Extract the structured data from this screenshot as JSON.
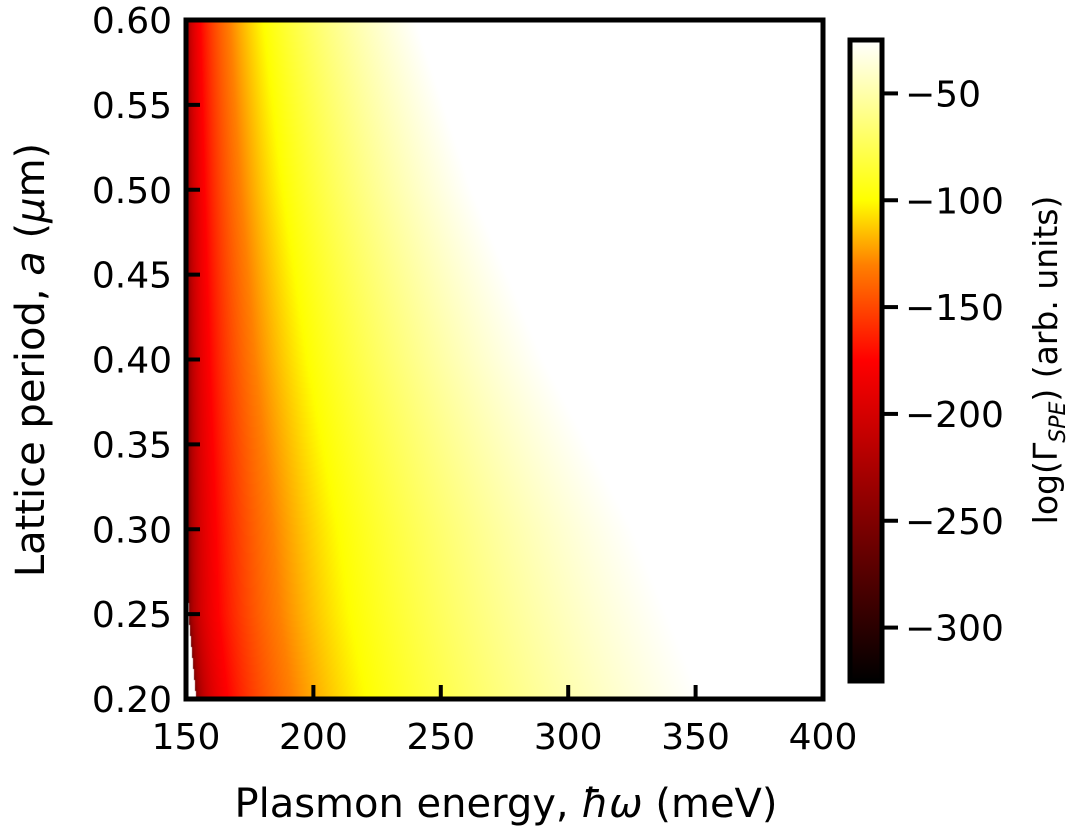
{
  "chart_data": {
    "type": "heatmap",
    "title": "",
    "xlabel": {
      "pre": "Plasmon energy, ",
      "sym": "ħω",
      "post": " (meV)"
    },
    "ylabel": {
      "pre": "Lattice period, ",
      "sym": "a",
      "post": " (",
      "mu": "μ",
      "unit": "m)"
    },
    "xlim": [
      150,
      400
    ],
    "ylim": [
      0.2,
      0.6
    ],
    "xticks": [
      150,
      200,
      250,
      300,
      350,
      400
    ],
    "xtick_labels": [
      "150",
      "200",
      "250",
      "300",
      "350",
      "400"
    ],
    "yticks": [
      0.2,
      0.25,
      0.3,
      0.35,
      0.4,
      0.45,
      0.5,
      0.55,
      0.6
    ],
    "ytick_labels": [
      "0.20",
      "0.25",
      "0.30",
      "0.35",
      "0.40",
      "0.45",
      "0.50",
      "0.55",
      "0.60"
    ],
    "colormap": "afmhot",
    "colorbar": {
      "label": {
        "pre": "log(Γ",
        "sub": "SPE",
        "post": ")  (arb. units)"
      },
      "vmin": -325,
      "vmax": -25,
      "ticks": [
        -50,
        -100,
        -150,
        -200,
        -250,
        -300
      ],
      "tick_labels": [
        "−50",
        "−100",
        "−150",
        "−200",
        "−250",
        "−300"
      ]
    },
    "field": {
      "description_keys": [
        "cutoff_energy_meV_at_a",
        "white_boundary_meV_at_a"
      ],
      "min_energy_edge": [
        {
          "a": 0.2,
          "e": 154
        },
        {
          "a": 0.25,
          "e": 151
        },
        {
          "a": 0.6,
          "e": 150
        }
      ],
      "white_boundary": [
        {
          "a": 0.2,
          "e": 352
        },
        {
          "a": 0.3,
          "e": 325
        },
        {
          "a": 0.4,
          "e": 290
        },
        {
          "a": 0.5,
          "e": 262
        },
        {
          "a": 0.6,
          "e": 240
        }
      ]
    }
  }
}
